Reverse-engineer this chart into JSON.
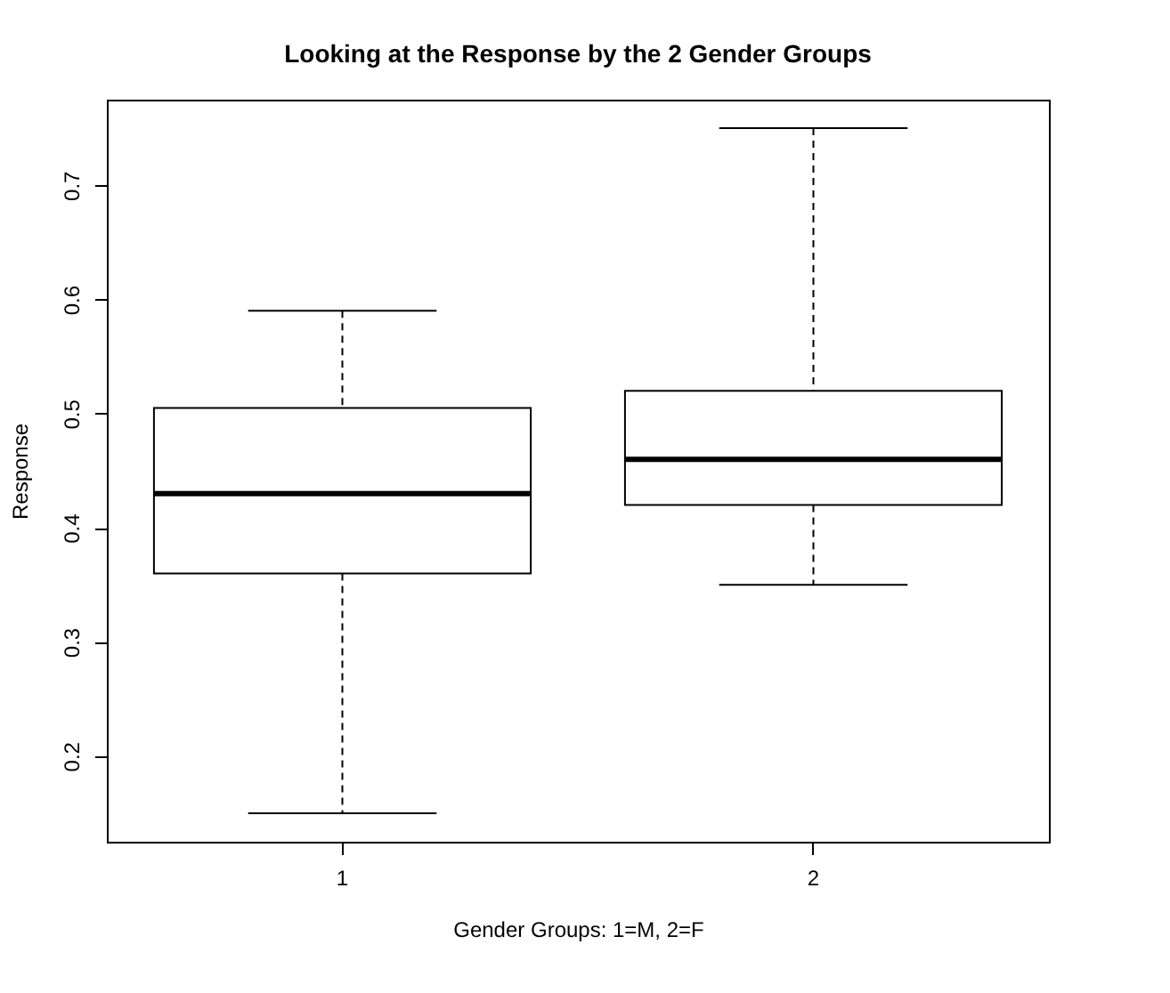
{
  "chart_data": {
    "type": "box",
    "title": "Looking at the Response by the 2 Gender Groups",
    "xlabel": "Gender Groups: 1=M, 2=F",
    "ylabel": "Response",
    "categories": [
      "1",
      "2"
    ],
    "boxes": [
      {
        "low": 0.15,
        "q1": 0.36,
        "median": 0.43,
        "q3": 0.505,
        "high": 0.59
      },
      {
        "low": 0.35,
        "q1": 0.42,
        "median": 0.46,
        "q3": 0.52,
        "high": 0.75
      }
    ],
    "ylim": [
      0.125,
      0.775
    ],
    "yticks": [
      0.2,
      0.3,
      0.4,
      0.5,
      0.6,
      0.7
    ]
  }
}
